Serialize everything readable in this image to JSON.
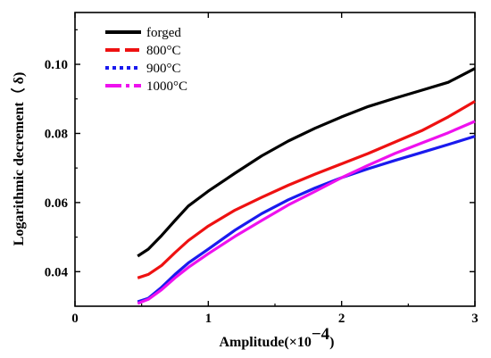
{
  "chart_data": {
    "type": "line",
    "xlabel_main": "Amplitude(×10",
    "xlabel_exp": "−4",
    "xlabel_close": ")",
    "ylabel": "Logarithmic decrement（ δ)",
    "xlim": [
      0,
      3
    ],
    "ylim": [
      0.03,
      0.115
    ],
    "xticks": [
      0,
      1,
      2,
      3
    ],
    "yticks": [
      0.04,
      0.06,
      0.08,
      0.1
    ],
    "xtick_labels": [
      "0",
      "1",
      "2",
      "3"
    ],
    "ytick_labels": [
      "0.04",
      "0.06",
      "0.08",
      "0.10"
    ],
    "grid": false,
    "legend_position": "top-left",
    "series": [
      {
        "name": "forged",
        "color": "#000000",
        "dash": "solid",
        "x": [
          0.47,
          0.55,
          0.65,
          0.75,
          0.85,
          1.0,
          1.2,
          1.4,
          1.6,
          1.8,
          2.0,
          2.2,
          2.4,
          2.6,
          2.8,
          3.0
        ],
        "y": [
          0.0445,
          0.0465,
          0.0505,
          0.0548,
          0.059,
          0.0633,
          0.0685,
          0.0735,
          0.0778,
          0.0815,
          0.0848,
          0.0878,
          0.0902,
          0.0925,
          0.0948,
          0.0988
        ]
      },
      {
        "name": "800°C",
        "color": "#ee1111",
        "dash": "dash",
        "x": [
          0.47,
          0.55,
          0.65,
          0.75,
          0.85,
          1.0,
          1.2,
          1.4,
          1.6,
          1.8,
          2.0,
          2.2,
          2.4,
          2.6,
          2.8,
          3.0
        ],
        "y": [
          0.0382,
          0.0392,
          0.0418,
          0.0455,
          0.049,
          0.0532,
          0.0578,
          0.0615,
          0.065,
          0.0682,
          0.0712,
          0.0742,
          0.0775,
          0.0808,
          0.0848,
          0.0893
        ]
      },
      {
        "name": "900°C",
        "color": "#1a1aee",
        "dash": "dot",
        "x": [
          0.47,
          0.55,
          0.65,
          0.75,
          0.85,
          1.0,
          1.2,
          1.4,
          1.6,
          1.8,
          2.0,
          2.2,
          2.4,
          2.6,
          2.8,
          3.0
        ],
        "y": [
          0.0313,
          0.0323,
          0.0355,
          0.0392,
          0.0425,
          0.0465,
          0.052,
          0.0568,
          0.0608,
          0.0642,
          0.0672,
          0.0698,
          0.0722,
          0.0745,
          0.0768,
          0.0792
        ]
      },
      {
        "name": "1000°C",
        "color": "#ee11ee",
        "dash": "dashdot",
        "x": [
          0.47,
          0.55,
          0.65,
          0.75,
          0.85,
          1.0,
          1.2,
          1.4,
          1.6,
          1.8,
          2.0,
          2.2,
          2.4,
          2.6,
          2.8,
          3.0
        ],
        "y": [
          0.0308,
          0.032,
          0.0348,
          0.0382,
          0.0412,
          0.0452,
          0.0502,
          0.0548,
          0.0593,
          0.0632,
          0.0672,
          0.0708,
          0.0742,
          0.0772,
          0.0802,
          0.0835
        ]
      }
    ]
  }
}
